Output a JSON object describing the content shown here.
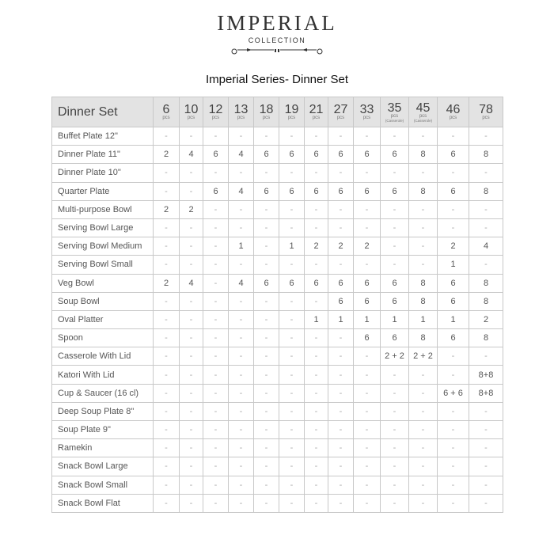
{
  "logo": {
    "brand": "IMPERIAL",
    "sub": "COLLECTION"
  },
  "title": "Imperial Series- Dinner Set",
  "table": {
    "corner": "Dinner Set",
    "unit": "pcs",
    "columns": [
      {
        "count": "6",
        "note": ""
      },
      {
        "count": "10",
        "note": ""
      },
      {
        "count": "12",
        "note": ""
      },
      {
        "count": "13",
        "note": ""
      },
      {
        "count": "18",
        "note": ""
      },
      {
        "count": "19",
        "note": ""
      },
      {
        "count": "21",
        "note": ""
      },
      {
        "count": "27",
        "note": ""
      },
      {
        "count": "33",
        "note": ""
      },
      {
        "count": "35",
        "note": "(Casserole)"
      },
      {
        "count": "45",
        "note": "(Casserole)"
      },
      {
        "count": "46",
        "note": ""
      },
      {
        "count": "78",
        "note": ""
      }
    ],
    "rows": [
      {
        "item": "Buffet Plate 12\"",
        "values": [
          "-",
          "-",
          "-",
          "-",
          "-",
          "-",
          "-",
          "-",
          "-",
          "-",
          "-",
          "-",
          "-"
        ]
      },
      {
        "item": "Dinner Plate 11\"",
        "values": [
          "2",
          "4",
          "6",
          "4",
          "6",
          "6",
          "6",
          "6",
          "6",
          "6",
          "8",
          "6",
          "8"
        ]
      },
      {
        "item": "Dinner Plate 10\"",
        "values": [
          "-",
          "-",
          "-",
          "-",
          "-",
          "-",
          "-",
          "-",
          "-",
          "-",
          "-",
          "-",
          "-"
        ]
      },
      {
        "item": "Quarter Plate",
        "values": [
          "-",
          "-",
          "6",
          "4",
          "6",
          "6",
          "6",
          "6",
          "6",
          "6",
          "8",
          "6",
          "8"
        ]
      },
      {
        "item": "Multi-purpose Bowl",
        "values": [
          "2",
          "2",
          "-",
          "-",
          "-",
          "-",
          "-",
          "-",
          "-",
          "-",
          "-",
          "-",
          "-"
        ]
      },
      {
        "item": "Serving Bowl Large",
        "values": [
          "-",
          "-",
          "-",
          "-",
          "-",
          "-",
          "-",
          "-",
          "-",
          "-",
          "-",
          "-",
          "-"
        ]
      },
      {
        "item": "Serving Bowl Medium",
        "values": [
          "-",
          "-",
          "-",
          "1",
          "-",
          "1",
          "2",
          "2",
          "2",
          "-",
          "-",
          "2",
          "4"
        ]
      },
      {
        "item": "Serving Bowl Small",
        "values": [
          "-",
          "-",
          "-",
          "-",
          "-",
          "-",
          "-",
          "-",
          "-",
          "-",
          "-",
          "1",
          "-"
        ]
      },
      {
        "item": "Veg Bowl",
        "values": [
          "2",
          "4",
          "-",
          "4",
          "6",
          "6",
          "6",
          "6",
          "6",
          "6",
          "8",
          "6",
          "8"
        ]
      },
      {
        "item": "Soup Bowl",
        "values": [
          "-",
          "-",
          "-",
          "-",
          "-",
          "-",
          "-",
          "6",
          "6",
          "6",
          "8",
          "6",
          "8"
        ]
      },
      {
        "item": "Oval Platter",
        "values": [
          "-",
          "-",
          "-",
          "-",
          "-",
          "-",
          "1",
          "1",
          "1",
          "1",
          "1",
          "1",
          "2"
        ]
      },
      {
        "item": "Spoon",
        "values": [
          "-",
          "-",
          "-",
          "-",
          "-",
          "-",
          "-",
          "-",
          "6",
          "6",
          "8",
          "6",
          "8"
        ]
      },
      {
        "item": "Casserole With Lid",
        "values": [
          "-",
          "-",
          "-",
          "-",
          "-",
          "-",
          "-",
          "-",
          "-",
          "2 + 2",
          "2 + 2",
          "-",
          "-"
        ]
      },
      {
        "item": "Katori With Lid",
        "values": [
          "-",
          "-",
          "-",
          "-",
          "-",
          "-",
          "-",
          "-",
          "-",
          "-",
          "-",
          "-",
          "8+8"
        ]
      },
      {
        "item": "Cup & Saucer (16 cl)",
        "values": [
          "-",
          "-",
          "-",
          "-",
          "-",
          "-",
          "-",
          "-",
          "-",
          "-",
          "-",
          "6 + 6",
          "8+8"
        ]
      },
      {
        "item": "Deep Soup Plate 8\"",
        "values": [
          "-",
          "-",
          "-",
          "-",
          "-",
          "-",
          "-",
          "-",
          "-",
          "-",
          "-",
          "-",
          "-"
        ]
      },
      {
        "item": "Soup Plate 9\"",
        "values": [
          "-",
          "-",
          "-",
          "-",
          "-",
          "-",
          "-",
          "-",
          "-",
          "-",
          "-",
          "-",
          "-"
        ]
      },
      {
        "item": "Ramekin",
        "values": [
          "-",
          "-",
          "-",
          "-",
          "-",
          "-",
          "-",
          "-",
          "-",
          "-",
          "-",
          "-",
          "-"
        ]
      },
      {
        "item": "Snack Bowl Large",
        "values": [
          "-",
          "-",
          "-",
          "-",
          "-",
          "-",
          "-",
          "-",
          "-",
          "-",
          "-",
          "-",
          "-"
        ]
      },
      {
        "item": "Snack Bowl Small",
        "values": [
          "-",
          "-",
          "-",
          "-",
          "-",
          "-",
          "-",
          "-",
          "-",
          "-",
          "-",
          "-",
          "-"
        ]
      },
      {
        "item": "Snack Bowl Flat",
        "values": [
          "-",
          "-",
          "-",
          "-",
          "-",
          "-",
          "-",
          "-",
          "-",
          "-",
          "-",
          "-",
          "-"
        ]
      }
    ]
  }
}
